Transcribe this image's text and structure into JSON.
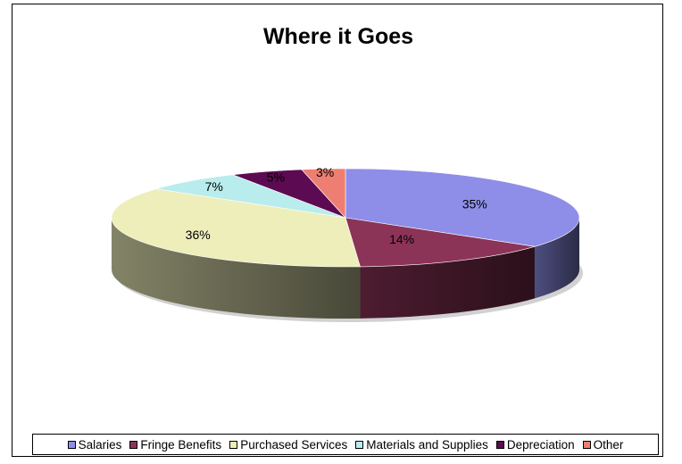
{
  "chart_data": {
    "type": "pie",
    "title": "Where it Goes",
    "legend_position": "bottom",
    "slices": [
      {
        "name": "Salaries",
        "value": 35,
        "label": "35%",
        "color": "#8e8ee8"
      },
      {
        "name": "Fringe Benefits",
        "value": 14,
        "label": "14%",
        "color": "#8c3358"
      },
      {
        "name": "Purchased Services",
        "value": 36,
        "label": "36%",
        "color": "#eeeebb"
      },
      {
        "name": "Materials and Supplies",
        "value": 7,
        "label": "7%",
        "color": "#b9ecec"
      },
      {
        "name": "Depreciation",
        "value": 5,
        "label": "5%",
        "color": "#5c0a52"
      },
      {
        "name": "Other",
        "value": 3,
        "label": "3%",
        "color": "#ee7e72"
      }
    ]
  }
}
